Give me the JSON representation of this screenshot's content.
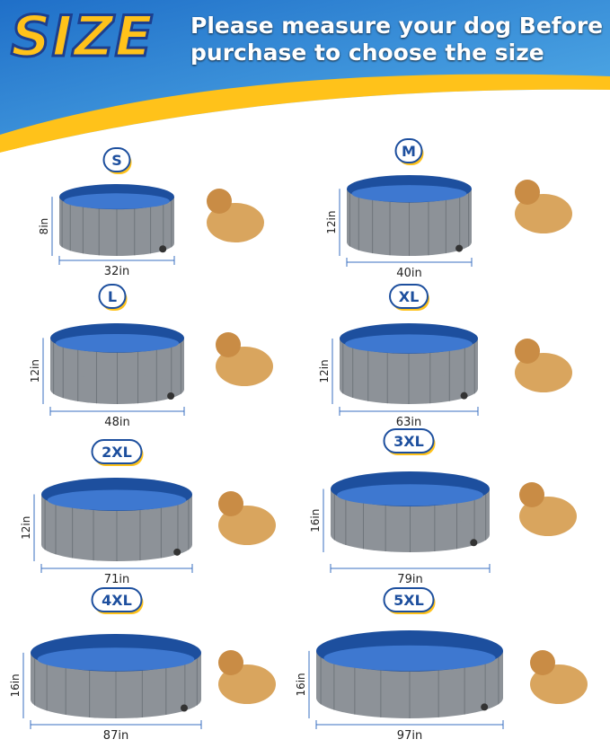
{
  "header": {
    "title": "SIZE",
    "subtitle": "Please measure your dog Before purchase to choose the size"
  },
  "sizes": [
    {
      "label": "S",
      "height": "8in",
      "width": "32in"
    },
    {
      "label": "M",
      "height": "12in",
      "width": "40in"
    },
    {
      "label": "L",
      "height": "12in",
      "width": "48in"
    },
    {
      "label": "XL",
      "height": "12in",
      "width": "63in"
    },
    {
      "label": "2XL",
      "height": "12in",
      "width": "71in"
    },
    {
      "label": "3XL",
      "height": "16in",
      "width": "79in"
    },
    {
      "label": "4XL",
      "height": "16in",
      "width": "87in"
    },
    {
      "label": "5XL",
      "height": "16in",
      "width": "97in"
    }
  ]
}
